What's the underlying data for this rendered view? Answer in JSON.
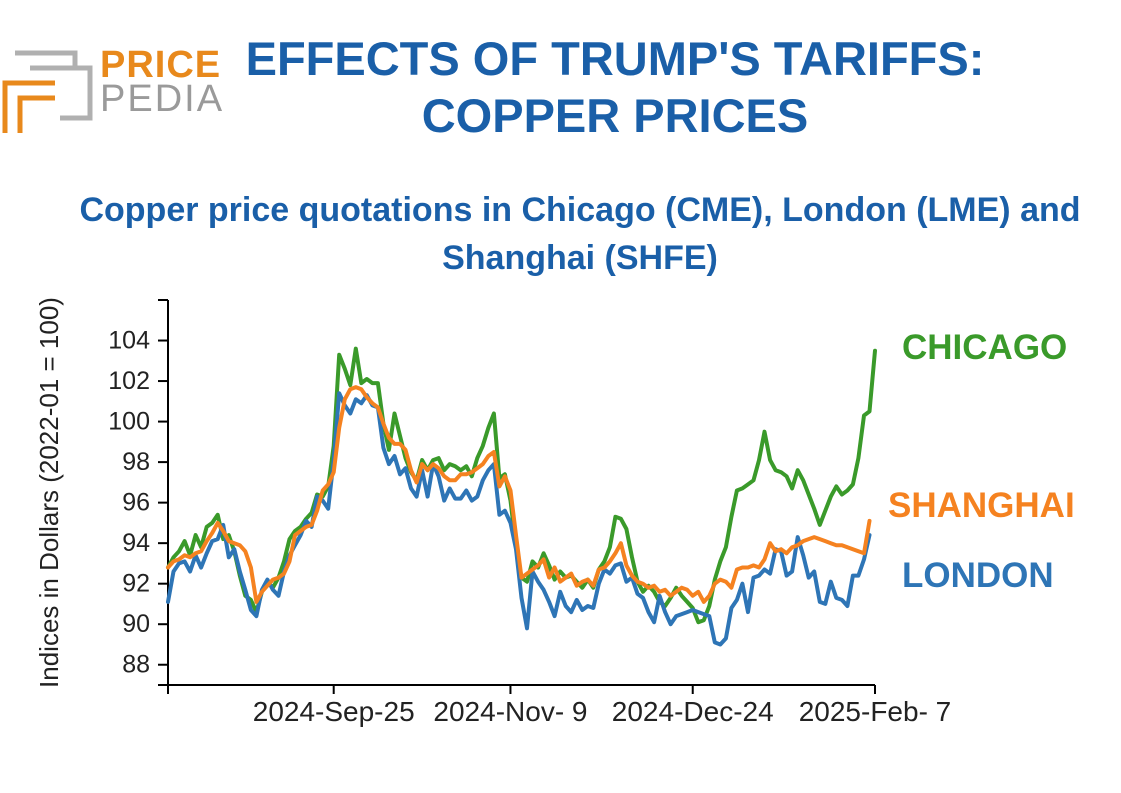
{
  "header": {
    "title": "EFFECTS OF TRUMP'S TARIFFS: COPPER PRICES",
    "subtitle": "Copper price quotations in Chicago (CME), London (LME) and Shanghai (SHFE)"
  },
  "logo": {
    "word1": "PRICE",
    "word2": "PEDIA"
  },
  "colors": {
    "chicago": "#3a9a2a",
    "shanghai": "#f58220",
    "london": "#2e75b6",
    "title": "#1a5fa8"
  },
  "chart_data": {
    "type": "line",
    "ylabel": "Indices in Dollars (2022-01 = 100)",
    "xlabel": "",
    "ylim": [
      87,
      106
    ],
    "yticks": [
      88,
      90,
      92,
      94,
      96,
      98,
      100,
      102,
      104
    ],
    "xlim": [
      0,
      128
    ],
    "xticks": [
      {
        "x": 30,
        "label": "2024-Sep-25"
      },
      {
        "x": 62,
        "label": "2024-Nov- 9"
      },
      {
        "x": 95,
        "label": "2024-Dec-24"
      },
      {
        "x": 128,
        "label": "2025-Feb- 7"
      }
    ],
    "series": [
      {
        "name": "CHICAGO",
        "label": "CHICAGO",
        "color": "#3a9a2a",
        "values": [
          92.8,
          93.3,
          93.6,
          94.1,
          93.4,
          94.4,
          93.8,
          94.8,
          95,
          95.4,
          94.2,
          94.4,
          93.6,
          92.4,
          91.4,
          91.2,
          90.6,
          91.6,
          92.1,
          91.8,
          92.3,
          93.1,
          94.2,
          94.6,
          94.8,
          95.2,
          95.5,
          96.4,
          96.3,
          96.8,
          98.8,
          103.3,
          102.6,
          101.8,
          103.6,
          101.9,
          102.1,
          101.9,
          101.9,
          99.9,
          98.6,
          100.4,
          99.3,
          98.2,
          97.5,
          97.1,
          98.1,
          97.6,
          98.1,
          98.2,
          97.6,
          97.9,
          97.8,
          97.6,
          97.8,
          97.3,
          98.2,
          98.8,
          99.7,
          100.4,
          97.2,
          97.4,
          96.1,
          93.8,
          92.3,
          92.1,
          93.1,
          92.8,
          93.5,
          92.9,
          92.2,
          92.6,
          92.3,
          92.4,
          92.1,
          91.8,
          92.2,
          91.8,
          92.7,
          93.1,
          93.8,
          95.3,
          95.2,
          94.7,
          93.3,
          92.1,
          91.6,
          91.9,
          91.6,
          91.1,
          90.9,
          91.3,
          91.8,
          91.4,
          91.1,
          90.8,
          90.1,
          90.2,
          90.9,
          92.2,
          93.1,
          93.8,
          95.3,
          96.6,
          96.7,
          96.9,
          97.1,
          98.1,
          99.5,
          98.1,
          97.6,
          97.5,
          97.3,
          96.7,
          97.6,
          97.1,
          96.4,
          95.7,
          94.9,
          95.6,
          96.3,
          96.8,
          96.4,
          96.6,
          96.9,
          98.2,
          100.3,
          100.5,
          103.5
        ]
      },
      {
        "name": "SHANGHAI",
        "label": "SHANGHAI",
        "color": "#f58220",
        "values": [
          92.8,
          93.1,
          93.2,
          93.4,
          93.3,
          93.5,
          93.6,
          94.1,
          94.5,
          95,
          94.6,
          94.1,
          94,
          93.9,
          93.6,
          92.8,
          91.1,
          91.6,
          91.9,
          92.2,
          92.3,
          92.5,
          93.1,
          94.4,
          94.6,
          94.8,
          94.9,
          95.6,
          96.6,
          96.9,
          97.5,
          99.7,
          101.1,
          101.6,
          101.7,
          101.6,
          101.2,
          100.9,
          100.7,
          99.9,
          99.2,
          98.9,
          98.9,
          98.6,
          97.6,
          97,
          97.9,
          97.6,
          97.9,
          97.7,
          97.3,
          97.1,
          97.1,
          97.4,
          97.4,
          97.5,
          97.7,
          97.9,
          98.3,
          98.5,
          96.8,
          97.3,
          96.6,
          94.4,
          92.3,
          92.5,
          92.7,
          92.9,
          93.2,
          92.3,
          92.8,
          92.1,
          92.3,
          92.5,
          91.9,
          92.1,
          92.2,
          91.9,
          92.7,
          92.8,
          93.1,
          93.5,
          94,
          92.9,
          92.4,
          92.1,
          92,
          91.8,
          91.9,
          91.6,
          91.7,
          91.4,
          91.6,
          91.8,
          91.7,
          91.4,
          91.6,
          91.1,
          91.4,
          92,
          92.2,
          92.1,
          91.8,
          92.7,
          92.8,
          92.8,
          92.9,
          92.8,
          93.2,
          94,
          93.6,
          93.7,
          93.5,
          93.8,
          93.9,
          94.1,
          94.2,
          94.3,
          94.2,
          94.1,
          94,
          93.9,
          93.9,
          93.8,
          93.7,
          93.6,
          93.5,
          95.1
        ]
      },
      {
        "name": "LONDON",
        "label": "LONDON",
        "color": "#2e75b6",
        "values": [
          91.1,
          92.6,
          93,
          93.1,
          92.6,
          93.4,
          92.8,
          93.5,
          94.1,
          94.2,
          94.9,
          93.3,
          93.7,
          92.6,
          91.7,
          90.7,
          90.4,
          91.7,
          92.2,
          91.7,
          91.4,
          92.6,
          93.4,
          93.9,
          94.4,
          95.1,
          94.8,
          96.3,
          96.1,
          95.7,
          98.1,
          101.4,
          100.8,
          100.4,
          101.1,
          100.9,
          101.3,
          100.8,
          100.7,
          98.7,
          97.9,
          98.3,
          97.4,
          97.7,
          96.7,
          96.3,
          97.6,
          96.3,
          97.9,
          97.3,
          96.1,
          96.7,
          96.2,
          96.2,
          96.6,
          96.1,
          96.3,
          97.1,
          97.6,
          97.9,
          95.4,
          95.6,
          95,
          93.7,
          91.3,
          89.8,
          92.6,
          92.1,
          91.7,
          91.1,
          90.4,
          91.6,
          90.9,
          90.6,
          91.2,
          90.7,
          90.9,
          90.8,
          92,
          92.7,
          92.5,
          92.9,
          93,
          92.1,
          92.3,
          91.5,
          91.3,
          90.6,
          90.1,
          91.4,
          90.6,
          90,
          90.4,
          90.5,
          90.6,
          90.7,
          90.6,
          90.5,
          90.4,
          89.1,
          89,
          89.3,
          90.8,
          91.2,
          92,
          90.6,
          92.3,
          92.4,
          92.7,
          92.5,
          93.7,
          93.6,
          92.4,
          92.6,
          94.3,
          93.4,
          92.3,
          92.6,
          91.1,
          91,
          92.1,
          91.3,
          91.2,
          90.9,
          92.4,
          92.4,
          93.2,
          94.4
        ]
      }
    ]
  }
}
